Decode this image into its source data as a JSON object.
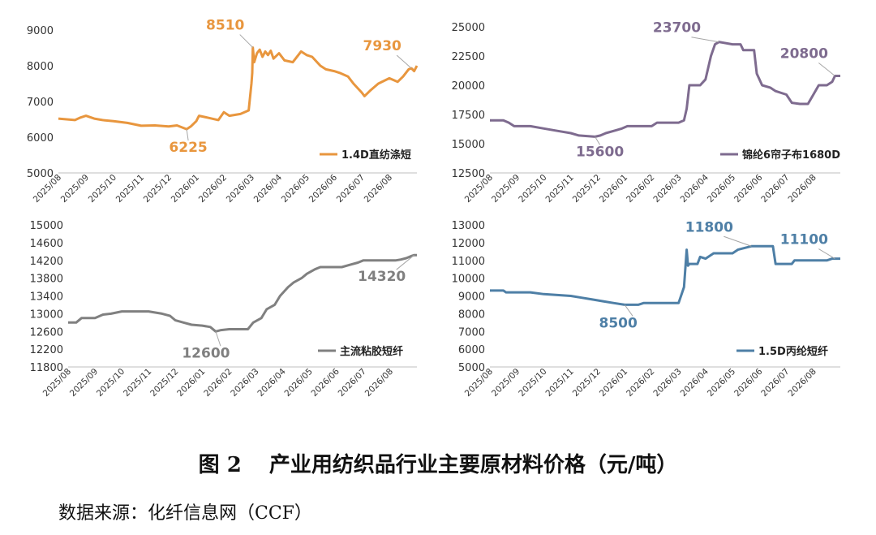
{
  "caption": {
    "figure_no": "图 2",
    "title": "产业用纺织品行业主要原材料价格（元/吨）"
  },
  "source": "数据来源：化纤信息网（CCF）",
  "chart_data": [
    {
      "type": "line",
      "title": "",
      "color": "#E8963E",
      "legend": "1.4D直纺涤短",
      "ylim": [
        5000,
        9000
      ],
      "yticks": [
        "5000",
        "6000",
        "7000",
        "8000",
        "9000"
      ],
      "xticks": [
        "2025/08",
        "2025/09",
        "2025/10",
        "2025/11",
        "2025/12",
        "2026/01",
        "2026/02",
        "2026/03",
        "2026/04",
        "2026/05",
        "2026/06",
        "2026/07",
        "2026/08"
      ],
      "callouts": [
        {
          "label": "8510",
          "x": 7.05,
          "y": 8510
        },
        {
          "label": "6225",
          "x": 4.65,
          "y": 6225
        },
        {
          "label": "7930",
          "x": 12.8,
          "y": 7930
        }
      ],
      "points": [
        [
          0,
          6520
        ],
        [
          0.3,
          6500
        ],
        [
          0.6,
          6480
        ],
        [
          0.8,
          6550
        ],
        [
          1.0,
          6600
        ],
        [
          1.3,
          6520
        ],
        [
          1.6,
          6480
        ],
        [
          2.0,
          6450
        ],
        [
          2.5,
          6400
        ],
        [
          3.0,
          6320
        ],
        [
          3.5,
          6330
        ],
        [
          4.0,
          6300
        ],
        [
          4.3,
          6330
        ],
        [
          4.65,
          6225
        ],
        [
          4.8,
          6300
        ],
        [
          5.0,
          6450
        ],
        [
          5.1,
          6600
        ],
        [
          5.4,
          6550
        ],
        [
          5.8,
          6480
        ],
        [
          6.0,
          6700
        ],
        [
          6.2,
          6600
        ],
        [
          6.6,
          6650
        ],
        [
          6.9,
          6750
        ],
        [
          7.0,
          7500
        ],
        [
          7.03,
          7800
        ],
        [
          7.05,
          8510
        ],
        [
          7.1,
          8100
        ],
        [
          7.2,
          8350
        ],
        [
          7.3,
          8450
        ],
        [
          7.4,
          8250
        ],
        [
          7.5,
          8400
        ],
        [
          7.6,
          8300
        ],
        [
          7.7,
          8420
        ],
        [
          7.8,
          8200
        ],
        [
          8.0,
          8350
        ],
        [
          8.2,
          8150
        ],
        [
          8.5,
          8100
        ],
        [
          8.8,
          8400
        ],
        [
          9.0,
          8300
        ],
        [
          9.2,
          8250
        ],
        [
          9.5,
          8000
        ],
        [
          9.7,
          7900
        ],
        [
          10.0,
          7850
        ],
        [
          10.2,
          7800
        ],
        [
          10.5,
          7700
        ],
        [
          10.7,
          7500
        ],
        [
          11.0,
          7250
        ],
        [
          11.1,
          7150
        ],
        [
          11.3,
          7300
        ],
        [
          11.6,
          7500
        ],
        [
          12.0,
          7650
        ],
        [
          12.3,
          7550
        ],
        [
          12.5,
          7700
        ],
        [
          12.7,
          7900
        ],
        [
          12.8,
          7930
        ],
        [
          12.9,
          7850
        ],
        [
          13.0,
          8000
        ]
      ]
    },
    {
      "type": "line",
      "title": "",
      "color": "#7E6B8F",
      "legend": "锦纶6帘子布1680D",
      "ylim": [
        12500,
        25000
      ],
      "yticks": [
        "12500",
        "15000",
        "17500",
        "20000",
        "22500",
        "25000"
      ],
      "xticks": [
        "2025/08",
        "2025/09",
        "2025/10",
        "2025/11",
        "2025/12",
        "2026/01",
        "2026/02",
        "2026/03",
        "2026/04",
        "2026/05",
        "2026/06",
        "2026/07",
        "2026/08"
      ],
      "callouts": [
        {
          "label": "23700",
          "x": 8.5,
          "y": 23700
        },
        {
          "label": "15600",
          "x": 3.9,
          "y": 15600
        },
        {
          "label": "20800",
          "x": 12.8,
          "y": 20800
        }
      ],
      "points": [
        [
          0,
          17000
        ],
        [
          0.5,
          17000
        ],
        [
          0.7,
          16800
        ],
        [
          0.9,
          16500
        ],
        [
          1.5,
          16500
        ],
        [
          2.0,
          16300
        ],
        [
          2.5,
          16100
        ],
        [
          3.0,
          15900
        ],
        [
          3.3,
          15700
        ],
        [
          3.9,
          15600
        ],
        [
          4.1,
          15700
        ],
        [
          4.3,
          15900
        ],
        [
          4.6,
          16100
        ],
        [
          4.9,
          16300
        ],
        [
          5.1,
          16500
        ],
        [
          6.0,
          16500
        ],
        [
          6.2,
          16800
        ],
        [
          7.0,
          16800
        ],
        [
          7.2,
          17000
        ],
        [
          7.3,
          18000
        ],
        [
          7.4,
          20000
        ],
        [
          7.8,
          20000
        ],
        [
          8.0,
          20500
        ],
        [
          8.2,
          22500
        ],
        [
          8.35,
          23500
        ],
        [
          8.5,
          23700
        ],
        [
          9.0,
          23500
        ],
        [
          9.3,
          23500
        ],
        [
          9.4,
          23000
        ],
        [
          9.8,
          23000
        ],
        [
          9.9,
          21000
        ],
        [
          10.1,
          20000
        ],
        [
          10.4,
          19800
        ],
        [
          10.6,
          19500
        ],
        [
          11.0,
          19200
        ],
        [
          11.2,
          18500
        ],
        [
          11.5,
          18400
        ],
        [
          11.8,
          18400
        ],
        [
          12.0,
          19200
        ],
        [
          12.2,
          20000
        ],
        [
          12.5,
          20000
        ],
        [
          12.7,
          20300
        ],
        [
          12.8,
          20800
        ],
        [
          13.0,
          20800
        ]
      ]
    },
    {
      "type": "line",
      "title": "",
      "color": "#808080",
      "legend": "主流粘胶短纤",
      "ylim": [
        11800,
        15000
      ],
      "yticks": [
        "11800",
        "12200",
        "12600",
        "13000",
        "13400",
        "13800",
        "14200",
        "14600",
        "15000"
      ],
      "xticks": [
        "2025/08",
        "2025/09",
        "2025/10",
        "2025/11",
        "2025/12",
        "2026/01",
        "2026/02",
        "2026/03",
        "2026/04",
        "2026/05",
        "2026/06",
        "2026/07",
        "2026/08"
      ],
      "callouts": [
        {
          "label": "14320",
          "x": 12.9,
          "y": 14320
        },
        {
          "label": "12600",
          "x": 5.5,
          "y": 12600
        }
      ],
      "points": [
        [
          0,
          12800
        ],
        [
          0.3,
          12800
        ],
        [
          0.5,
          12900
        ],
        [
          1.0,
          12900
        ],
        [
          1.3,
          12980
        ],
        [
          1.6,
          13000
        ],
        [
          2.0,
          13050
        ],
        [
          3.0,
          13050
        ],
        [
          3.5,
          13000
        ],
        [
          3.8,
          12950
        ],
        [
          4.0,
          12850
        ],
        [
          4.3,
          12800
        ],
        [
          4.6,
          12750
        ],
        [
          5.0,
          12730
        ],
        [
          5.3,
          12700
        ],
        [
          5.5,
          12600
        ],
        [
          5.7,
          12630
        ],
        [
          6.0,
          12650
        ],
        [
          6.7,
          12650
        ],
        [
          6.9,
          12800
        ],
        [
          7.2,
          12900
        ],
        [
          7.4,
          13100
        ],
        [
          7.7,
          13200
        ],
        [
          7.9,
          13400
        ],
        [
          8.2,
          13600
        ],
        [
          8.4,
          13700
        ],
        [
          8.7,
          13800
        ],
        [
          8.9,
          13900
        ],
        [
          9.2,
          14000
        ],
        [
          9.4,
          14050
        ],
        [
          10.2,
          14050
        ],
        [
          10.5,
          14100
        ],
        [
          10.8,
          14150
        ],
        [
          11.0,
          14200
        ],
        [
          12.2,
          14200
        ],
        [
          12.4,
          14220
        ],
        [
          12.6,
          14250
        ],
        [
          12.8,
          14300
        ],
        [
          12.9,
          14320
        ],
        [
          13.0,
          14320
        ]
      ]
    },
    {
      "type": "line",
      "title": "",
      "color": "#4E7FA6",
      "legend": "1.5D丙纶短纤",
      "ylim": [
        5000,
        13000
      ],
      "yticks": [
        "5000",
        "6000",
        "7000",
        "8000",
        "9000",
        "10000",
        "11000",
        "12000",
        "13000"
      ],
      "xticks": [
        "2025/08",
        "2025/09",
        "2025/10",
        "2025/11",
        "2025/12",
        "2026/01",
        "2026/02",
        "2026/03",
        "2026/04",
        "2026/05",
        "2026/06",
        "2026/07",
        "2026/08"
      ],
      "callouts": [
        {
          "label": "11800",
          "x": 9.7,
          "y": 11800
        },
        {
          "label": "8500",
          "x": 5.0,
          "y": 8500
        },
        {
          "label": "11100",
          "x": 12.8,
          "y": 11100
        }
      ],
      "points": [
        [
          0,
          9300
        ],
        [
          0.5,
          9300
        ],
        [
          0.6,
          9200
        ],
        [
          1.5,
          9200
        ],
        [
          2.0,
          9100
        ],
        [
          2.5,
          9050
        ],
        [
          3.0,
          9000
        ],
        [
          3.4,
          8900
        ],
        [
          3.8,
          8800
        ],
        [
          4.2,
          8700
        ],
        [
          4.6,
          8600
        ],
        [
          5.0,
          8500
        ],
        [
          5.5,
          8500
        ],
        [
          5.7,
          8600
        ],
        [
          7.0,
          8600
        ],
        [
          7.2,
          9500
        ],
        [
          7.3,
          11600
        ],
        [
          7.35,
          10700
        ],
        [
          7.4,
          10800
        ],
        [
          7.7,
          10800
        ],
        [
          7.8,
          11200
        ],
        [
          8.0,
          11100
        ],
        [
          8.3,
          11400
        ],
        [
          9.0,
          11400
        ],
        [
          9.2,
          11600
        ],
        [
          9.7,
          11800
        ],
        [
          10.5,
          11800
        ],
        [
          10.6,
          10800
        ],
        [
          11.2,
          10800
        ],
        [
          11.3,
          11000
        ],
        [
          12.5,
          11000
        ],
        [
          12.7,
          11100
        ],
        [
          13.0,
          11100
        ]
      ]
    }
  ]
}
